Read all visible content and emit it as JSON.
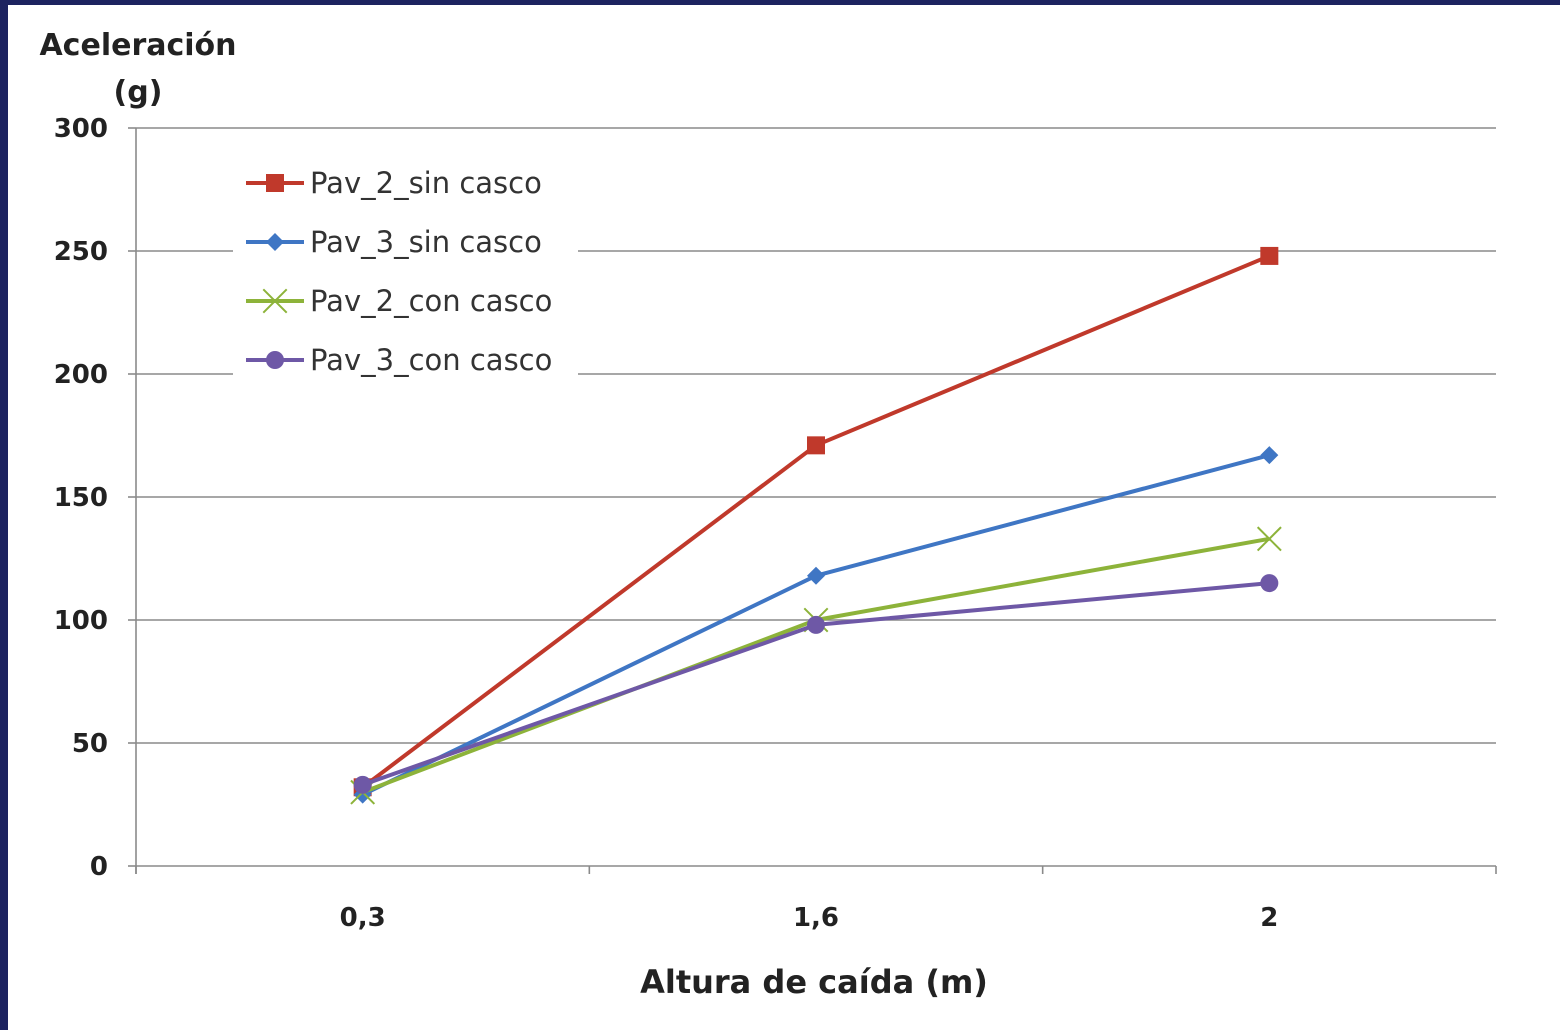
{
  "chart_data": {
    "type": "line",
    "title": "",
    "ylabel_lines": [
      "Aceleración",
      "(g)"
    ],
    "xlabel": "Altura de caída (m)",
    "categories": [
      "0,3",
      "1,6",
      "2"
    ],
    "ylim": [
      0,
      300
    ],
    "yticks": [
      0,
      50,
      100,
      150,
      200,
      250,
      300
    ],
    "grid": "horizontal",
    "legend_position": "top-left",
    "series": [
      {
        "name": "Pav_2_sin casco",
        "values": [
          32,
          171,
          248
        ],
        "color": "#c0392b",
        "marker": "square"
      },
      {
        "name": "Pav_3_sin casco",
        "values": [
          29,
          118,
          167
        ],
        "color": "#3f76c4",
        "marker": "diamond"
      },
      {
        "name": "Pav_2_con casco",
        "values": [
          30,
          100,
          133
        ],
        "color": "#8db33a",
        "marker": "x"
      },
      {
        "name": "Pav_3_con casco",
        "values": [
          33,
          98,
          115
        ],
        "color": "#6e58a6",
        "marker": "circle"
      }
    ]
  }
}
